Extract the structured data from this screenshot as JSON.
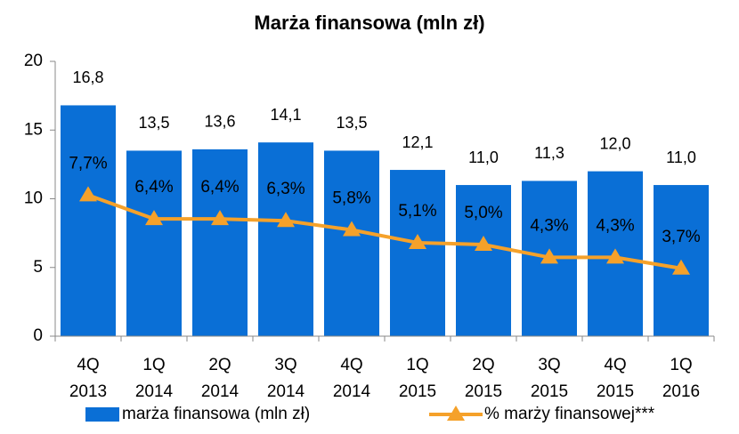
{
  "chart_data": {
    "type": "bar",
    "title": "Marża finansowa (mln zł)",
    "categories": [
      [
        "4Q",
        "2013"
      ],
      [
        "1Q",
        "2014"
      ],
      [
        "2Q",
        "2014"
      ],
      [
        "3Q",
        "2014"
      ],
      [
        "4Q",
        "2014"
      ],
      [
        "1Q",
        "2015"
      ],
      [
        "2Q",
        "2015"
      ],
      [
        "3Q",
        "2015"
      ],
      [
        "4Q",
        "2015"
      ],
      [
        "1Q",
        "2016"
      ]
    ],
    "ylim": [
      0,
      20
    ],
    "yticks": [
      0,
      5,
      10,
      15,
      20
    ],
    "y2lim": [
      0,
      15
    ],
    "legend": "bottom",
    "series": [
      {
        "name": "marża finansowa (mln zł)",
        "type": "bar",
        "color": "#0a6fd6",
        "values": [
          16.8,
          13.5,
          13.6,
          14.1,
          13.5,
          12.1,
          11.0,
          11.3,
          12.0,
          11.0
        ],
        "value_labels": [
          "16,8",
          "13,5",
          "13,6",
          "14,1",
          "13,5",
          "12,1",
          "11,0",
          "11,3",
          "12,0",
          "11,0"
        ]
      },
      {
        "name": "% marży finansowej***",
        "type": "line",
        "axis": "y2",
        "color": "#f5a12a",
        "values": [
          7.7,
          6.4,
          6.4,
          6.3,
          5.8,
          5.1,
          5.0,
          4.3,
          4.3,
          3.7
        ],
        "value_labels": [
          "7,7%",
          "6,4%",
          "6,4%",
          "6,3%",
          "5,8%",
          "5,1%",
          "5,0%",
          "4,3%",
          "4,3%",
          "3,7%"
        ]
      }
    ]
  }
}
